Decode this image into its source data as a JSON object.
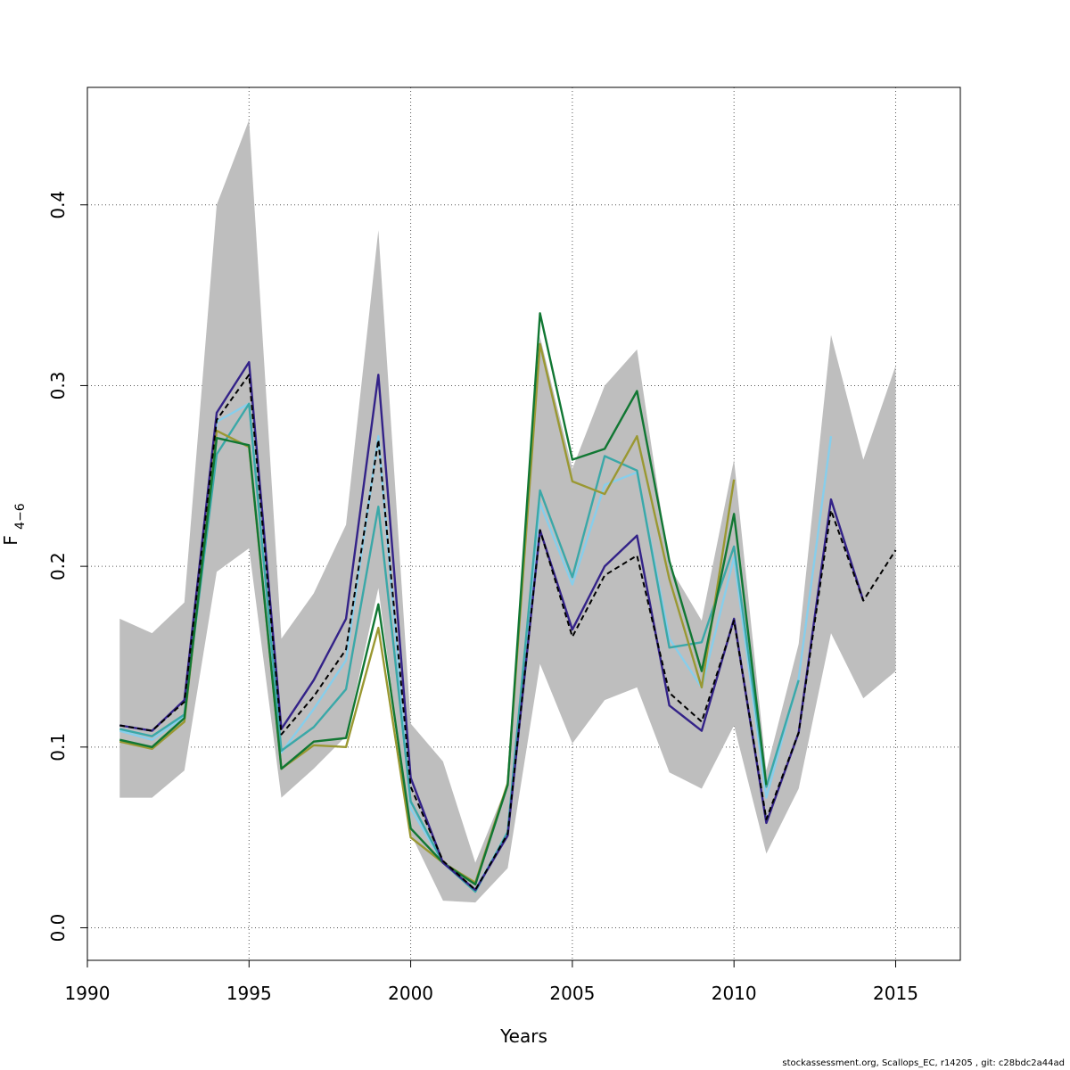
{
  "chart_data": {
    "type": "line",
    "xlabel": "Years",
    "ylabel": "F",
    "ylabel_subscript": "4−6",
    "xlim": [
      1990,
      2017
    ],
    "ylim": [
      -0.018,
      0.465
    ],
    "x_ticks": [
      1990,
      1995,
      2000,
      2005,
      2010,
      2015
    ],
    "x_tick_labels": [
      "1990",
      "1995",
      "2000",
      "2005",
      "2010",
      "2015"
    ],
    "y_ticks": [
      0.0,
      0.1,
      0.2,
      0.3,
      0.4
    ],
    "y_tick_labels": [
      "0.0",
      "0.1",
      "0.2",
      "0.3",
      "0.4"
    ],
    "grid": true,
    "colors": {
      "band": "#bebebe",
      "grid": "#555555"
    },
    "band": {
      "x": [
        1991,
        1992,
        1993,
        1994,
        1995,
        1996,
        1997,
        1998,
        1999,
        2000,
        2001,
        2002,
        2003,
        2004,
        2005,
        2006,
        2007,
        2008,
        2009,
        2010,
        2011,
        2012,
        2013,
        2014,
        2015
      ],
      "upper": [
        0.171,
        0.163,
        0.18,
        0.4,
        0.447,
        0.16,
        0.185,
        0.223,
        0.386,
        0.113,
        0.092,
        0.036,
        0.08,
        0.327,
        0.254,
        0.3,
        0.32,
        0.2,
        0.17,
        0.259,
        0.087,
        0.157,
        0.328,
        0.259,
        0.311
      ],
      "lower": [
        0.072,
        0.072,
        0.087,
        0.197,
        0.21,
        0.072,
        0.088,
        0.106,
        0.188,
        0.052,
        0.015,
        0.014,
        0.033,
        0.146,
        0.102,
        0.126,
        0.133,
        0.086,
        0.077,
        0.112,
        0.041,
        0.077,
        0.163,
        0.127,
        0.142
      ]
    },
    "series": [
      {
        "color": "#000000",
        "dashed": true,
        "x": [
          1991,
          1992,
          1993,
          1994,
          1995,
          1996,
          1997,
          1998,
          1999,
          2000,
          2001,
          2002,
          2003,
          2004,
          2005,
          2006,
          2007,
          2008,
          2009,
          2010,
          2011,
          2012,
          2013,
          2014,
          2015
        ],
        "values": [
          0.112,
          0.109,
          0.125,
          0.281,
          0.306,
          0.107,
          0.128,
          0.154,
          0.27,
          0.078,
          0.037,
          0.021,
          0.052,
          0.22,
          0.161,
          0.195,
          0.206,
          0.13,
          0.114,
          0.17,
          0.06,
          0.108,
          0.231,
          0.181,
          0.209
        ]
      },
      {
        "color": "#87ceeb",
        "dashed": false,
        "x": [
          1991,
          1992,
          1993,
          1994,
          1995,
          1996,
          1997,
          1998,
          1999,
          2000,
          2001,
          2002,
          2003,
          2004,
          2005,
          2006,
          2007,
          2008,
          2009,
          2010,
          2011,
          2012,
          2013
        ],
        "values": [
          0.109,
          0.104,
          0.117,
          0.28,
          0.29,
          0.097,
          0.121,
          0.148,
          0.272,
          0.066,
          0.036,
          0.021,
          0.053,
          0.235,
          0.19,
          0.245,
          0.252,
          0.16,
          0.133,
          0.205,
          0.072,
          0.138,
          0.272
        ]
      },
      {
        "color": "#3aa8a8",
        "dashed": false,
        "x": [
          1991,
          1992,
          1993,
          1994,
          1995,
          1996,
          1997,
          1998,
          1999,
          2000,
          2001,
          2002,
          2003,
          2004,
          2005,
          2006,
          2007,
          2008,
          2009,
          2010,
          2011,
          2012
        ],
        "values": [
          0.11,
          0.106,
          0.118,
          0.262,
          0.29,
          0.098,
          0.111,
          0.132,
          0.233,
          0.07,
          0.036,
          0.02,
          0.053,
          0.242,
          0.194,
          0.261,
          0.253,
          0.155,
          0.158,
          0.211,
          0.078,
          0.137
        ]
      },
      {
        "color": "#9a9832",
        "dashed": false,
        "x": [
          1991,
          1992,
          1993,
          1994,
          1995,
          1996,
          1997,
          1998,
          1999,
          2000,
          2001,
          2002,
          2003,
          2004,
          2005,
          2006,
          2007,
          2008,
          2009,
          2010
        ],
        "values": [
          0.103,
          0.099,
          0.114,
          0.275,
          0.266,
          0.088,
          0.101,
          0.1,
          0.166,
          0.05,
          0.036,
          0.025,
          0.08,
          0.323,
          0.247,
          0.24,
          0.272,
          0.193,
          0.133,
          0.248
        ]
      },
      {
        "color": "#117733",
        "dashed": false,
        "x": [
          1991,
          1992,
          1993,
          1994,
          1995,
          1996,
          1997,
          1998,
          1999,
          2000,
          2001,
          2002,
          2003,
          2004,
          2005,
          2006,
          2007,
          2008,
          2009,
          2010,
          2011
        ],
        "values": [
          0.104,
          0.1,
          0.116,
          0.271,
          0.267,
          0.088,
          0.103,
          0.105,
          0.179,
          0.055,
          0.036,
          0.024,
          0.079,
          0.34,
          0.259,
          0.265,
          0.297,
          0.203,
          0.142,
          0.229,
          0.079
        ]
      },
      {
        "color": "#332288",
        "dashed": false,
        "x": [
          1991,
          1992,
          1993,
          1994,
          1995,
          1996,
          1997,
          1998,
          1999,
          2000,
          2001,
          2002,
          2003,
          2004,
          2005,
          2006,
          2007,
          2008,
          2009,
          2010,
          2011,
          2012,
          2013,
          2014
        ],
        "values": [
          0.112,
          0.109,
          0.126,
          0.285,
          0.313,
          0.11,
          0.137,
          0.171,
          0.306,
          0.083,
          0.036,
          0.021,
          0.051,
          0.22,
          0.165,
          0.2,
          0.217,
          0.123,
          0.109,
          0.171,
          0.058,
          0.108,
          0.237,
          0.181
        ]
      }
    ]
  },
  "footer": "stockassessment.org, Scallops_EC, r14205 , git: c28bdc2a44ad"
}
